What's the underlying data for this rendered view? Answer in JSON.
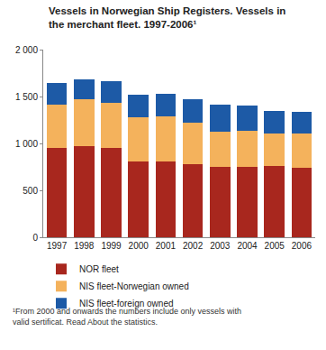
{
  "chart_data": {
    "type": "bar",
    "stacked": true,
    "title": "Vessels in Norwegian Ship Registers. Vessels in the merchant fleet. 1997-2006¹",
    "annotations": [
      "¹From 2000 and onwards the numbers include only vessels with valid sertificat. Read About the statistics."
    ],
    "categories": [
      "1997",
      "1998",
      "1999",
      "2000",
      "2001",
      "2002",
      "2003",
      "2004",
      "2005",
      "2006"
    ],
    "series": [
      {
        "name": "NOR fleet",
        "color": "#a8271e",
        "values": [
          950,
          970,
          955,
          810,
          810,
          775,
          750,
          750,
          755,
          745
        ]
      },
      {
        "name": "NIS fleet-Norwegian owned",
        "color": "#f4b25c",
        "values": [
          460,
          500,
          475,
          465,
          475,
          445,
          375,
          385,
          355,
          360
        ]
      },
      {
        "name": "NIS fleet-foreign owned",
        "color": "#1d5aa6",
        "values": [
          230,
          215,
          230,
          245,
          240,
          250,
          290,
          265,
          235,
          230
        ]
      }
    ],
    "ylim": [
      0,
      2000
    ],
    "yticks": [
      0,
      500,
      {
        "value": 1000,
        "label": "1 000"
      },
      {
        "value": 1500,
        "label": "1 500"
      },
      {
        "value": 2000,
        "label": "2 000"
      }
    ],
    "grid": false,
    "legend": "bottom"
  }
}
